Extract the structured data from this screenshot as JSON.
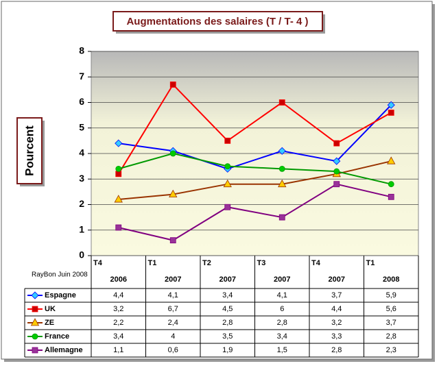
{
  "chart_data": {
    "type": "line",
    "title": "Augmentations des salaires (T / T- 4 )",
    "y_label": "Pourcent",
    "note": "RayBon Juin 2008",
    "categories": [
      [
        "T4",
        "2006"
      ],
      [
        "T1",
        "2007"
      ],
      [
        "T2",
        "2007"
      ],
      [
        "T3",
        "2007"
      ],
      [
        "T4",
        "2007"
      ],
      [
        "T1",
        "2008"
      ]
    ],
    "ylim": [
      0,
      8
    ],
    "yticks": [
      0,
      1,
      2,
      3,
      4,
      5,
      6,
      7,
      8
    ],
    "grid": true,
    "series": [
      {
        "name": "Espagne",
        "color": "#0000ff",
        "marker_color": "#33ccff",
        "marker": "diamond",
        "values": [
          4.4,
          4.1,
          3.4,
          4.1,
          3.7,
          5.9
        ],
        "value_labels": [
          "4,4",
          "4,1",
          "3,4",
          "4,1",
          "3,7",
          "5,9"
        ]
      },
      {
        "name": "UK",
        "color": "#ff0000",
        "marker_color": "#cc0000",
        "marker": "square",
        "values": [
          3.2,
          6.7,
          4.5,
          6,
          4.4,
          5.6
        ],
        "value_labels": [
          "3,2",
          "6,7",
          "4,5",
          "6",
          "4,4",
          "5,6"
        ]
      },
      {
        "name": "ZE",
        "color": "#993300",
        "marker_color": "#ffcc00",
        "marker": "triangle",
        "values": [
          2.2,
          2.4,
          2.8,
          2.8,
          3.2,
          3.7
        ],
        "value_labels": [
          "2,2",
          "2,4",
          "2,8",
          "2,8",
          "3,2",
          "3,7"
        ]
      },
      {
        "name": "France",
        "color": "#009900",
        "marker_color": "#00cc00",
        "marker": "circle",
        "values": [
          3.4,
          4,
          3.5,
          3.4,
          3.3,
          2.8
        ],
        "value_labels": [
          "3,4",
          "4",
          "3,5",
          "3,4",
          "3,3",
          "2,8"
        ]
      },
      {
        "name": "Allemagne",
        "color": "#800080",
        "marker_color": "#993399",
        "marker": "square",
        "values": [
          1.1,
          0.6,
          1.9,
          1.5,
          2.8,
          2.3
        ],
        "value_labels": [
          "1,1",
          "0,6",
          "1,9",
          "1,5",
          "2,8",
          "2,3"
        ]
      }
    ]
  }
}
